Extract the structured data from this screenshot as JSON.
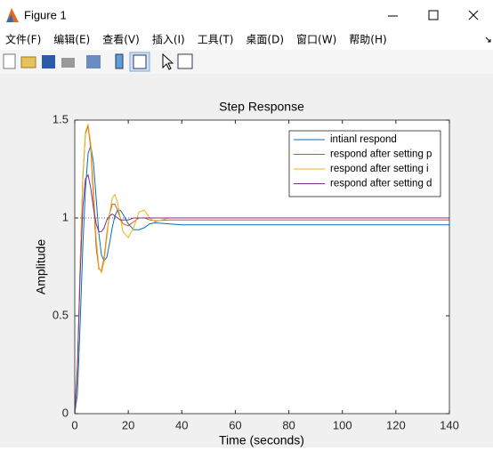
{
  "window": {
    "title": "Figure 1",
    "menu": [
      "文件(F)",
      "编辑(E)",
      "查看(V)",
      "插入(I)",
      "工具(T)",
      "桌面(D)",
      "窗口(W)",
      "帮助(H)"
    ]
  },
  "chart_data": {
    "type": "line",
    "title": "Step Response",
    "x_label": "Time (seconds)",
    "y_label": "Amplitude",
    "x": [
      0,
      1,
      2,
      3,
      4,
      5,
      6,
      7,
      8,
      9,
      10,
      11,
      12,
      13,
      14,
      15,
      16,
      17,
      18,
      20,
      22,
      24,
      26,
      28,
      30,
      35,
      40,
      50,
      60,
      80,
      100,
      120,
      140
    ],
    "series": [
      {
        "name": "intianl respond",
        "color": "#0072bd",
        "values": [
          0,
          0.1,
          0.45,
          0.85,
          1.15,
          1.33,
          1.37,
          1.28,
          1.1,
          0.92,
          0.81,
          0.78,
          0.8,
          0.87,
          0.95,
          1.01,
          1.04,
          1.04,
          1.02,
          0.97,
          0.94,
          0.94,
          0.95,
          0.97,
          0.975,
          0.97,
          0.965,
          0.965,
          0.965,
          0.965,
          0.965,
          0.965,
          0.965
        ]
      },
      {
        "name": "respond after setting p",
        "color": "#d95319",
        "values": [
          0,
          0.2,
          0.75,
          1.2,
          1.43,
          1.47,
          1.35,
          1.1,
          0.85,
          0.74,
          0.73,
          0.8,
          0.92,
          1.02,
          1.07,
          1.07,
          1.04,
          1.0,
          0.97,
          0.96,
          0.98,
          1.0,
          1.0,
          0.99,
          0.985,
          0.99,
          0.99,
          0.99,
          0.99,
          0.99,
          0.99,
          0.99,
          0.99
        ]
      },
      {
        "name": "respond after setting i",
        "color": "#edb120",
        "values": [
          0,
          0.2,
          0.75,
          1.2,
          1.44,
          1.48,
          1.38,
          1.15,
          0.9,
          0.75,
          0.72,
          0.78,
          0.9,
          1.02,
          1.1,
          1.12,
          1.08,
          1.0,
          0.93,
          0.9,
          0.95,
          1.03,
          1.04,
          1.0,
          0.98,
          1.0,
          1.0,
          1.0,
          1.0,
          1.0,
          1.0,
          1.0,
          1.0
        ]
      },
      {
        "name": "respond after setting d",
        "color": "#7e2f8e",
        "values": [
          0,
          0.25,
          0.7,
          1.05,
          1.2,
          1.22,
          1.15,
          1.05,
          0.97,
          0.93,
          0.93,
          0.95,
          0.99,
          1.01,
          1.02,
          1.01,
          1.0,
          0.99,
          0.99,
          0.99,
          1.0,
          1.0,
          1.0,
          1.0,
          1.0,
          1.0,
          1.0,
          1.0,
          1.0,
          1.0,
          1.0,
          1.0,
          1.0
        ]
      }
    ],
    "xlim": [
      0,
      140
    ],
    "xticks": [
      0,
      20,
      40,
      60,
      80,
      100,
      120,
      140
    ],
    "ylim": [
      0,
      1.5
    ],
    "yticks": [
      0,
      0.5,
      1,
      1.5
    ],
    "reference_line": 1,
    "legend": "northeast"
  }
}
